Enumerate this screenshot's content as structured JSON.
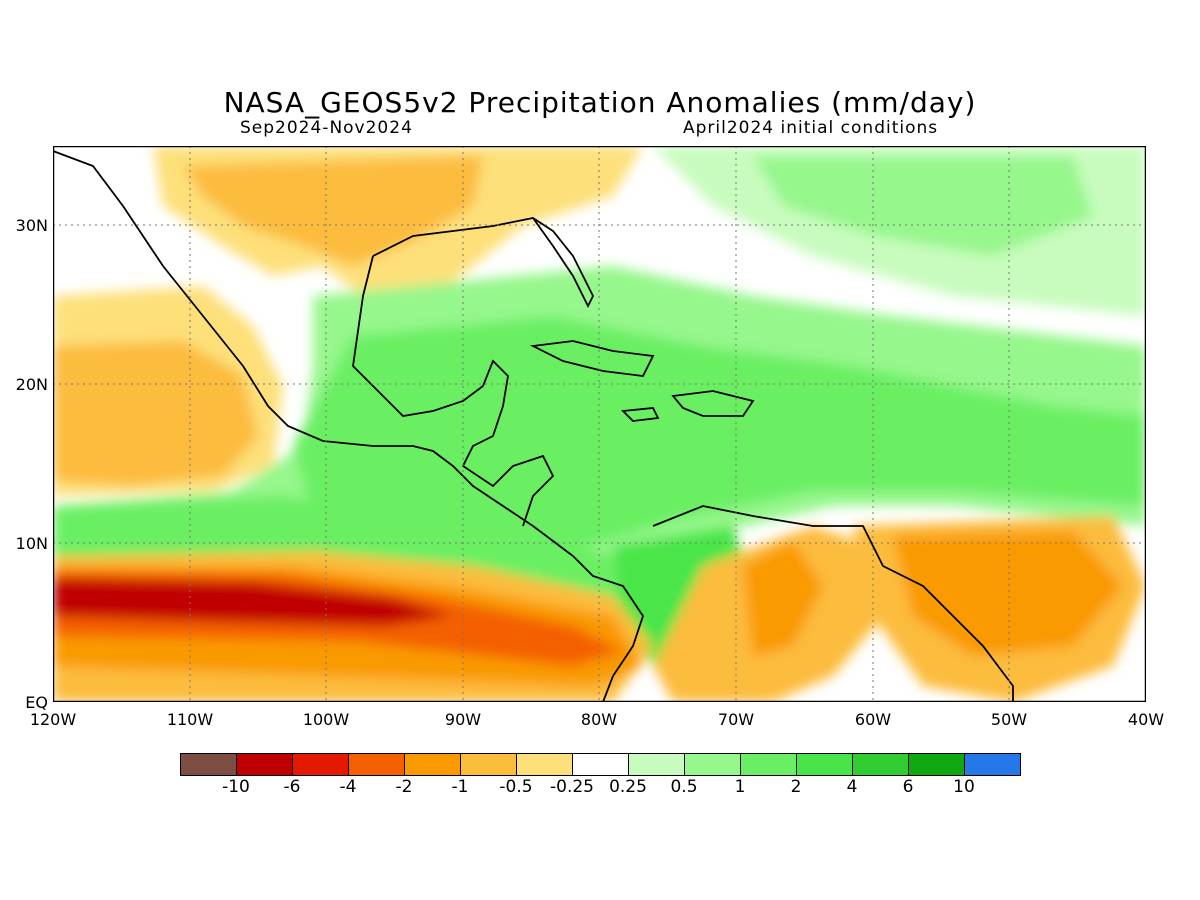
{
  "title": "NASA_GEOS5v2 Precipitation Anomalies (mm/day)",
  "subtitle_left": "Sep2024-Nov2024",
  "subtitle_right": "April2024 initial conditions",
  "lat_labels": [
    "30N",
    "20N",
    "10N",
    "EQ"
  ],
  "lon_labels": [
    "120W",
    "110W",
    "100W",
    "90W",
    "80W",
    "70W",
    "60W",
    "50W",
    "40W"
  ],
  "colorbar": {
    "colors": [
      "#7b4d43",
      "#c00000",
      "#e31a00",
      "#f46000",
      "#f99a00",
      "#fcbc3c",
      "#fde07a",
      "#ffffff",
      "#c8fcbe",
      "#96f78c",
      "#6aef64",
      "#48e548",
      "#30cc30",
      "#10a810",
      "#2478e8"
    ],
    "labels": [
      "-10",
      "-6",
      "-4",
      "-2",
      "-1",
      "-0.5",
      "-0.25",
      "0.25",
      "0.5",
      "1",
      "2",
      "4",
      "6",
      "10"
    ]
  },
  "colors": {
    "strong_dry": "#c00000",
    "dry": "#f46000",
    "moderate_dry": "#f99a00",
    "weak_dry": "#fcbc3c",
    "slight_dry": "#fde07a",
    "neutral": "#ffffff",
    "slight_wet": "#c8fcbe",
    "weak_wet": "#96f78c",
    "wet": "#6aef64",
    "strong_wet": "#30cc30",
    "very_wet": "#10a810"
  }
}
